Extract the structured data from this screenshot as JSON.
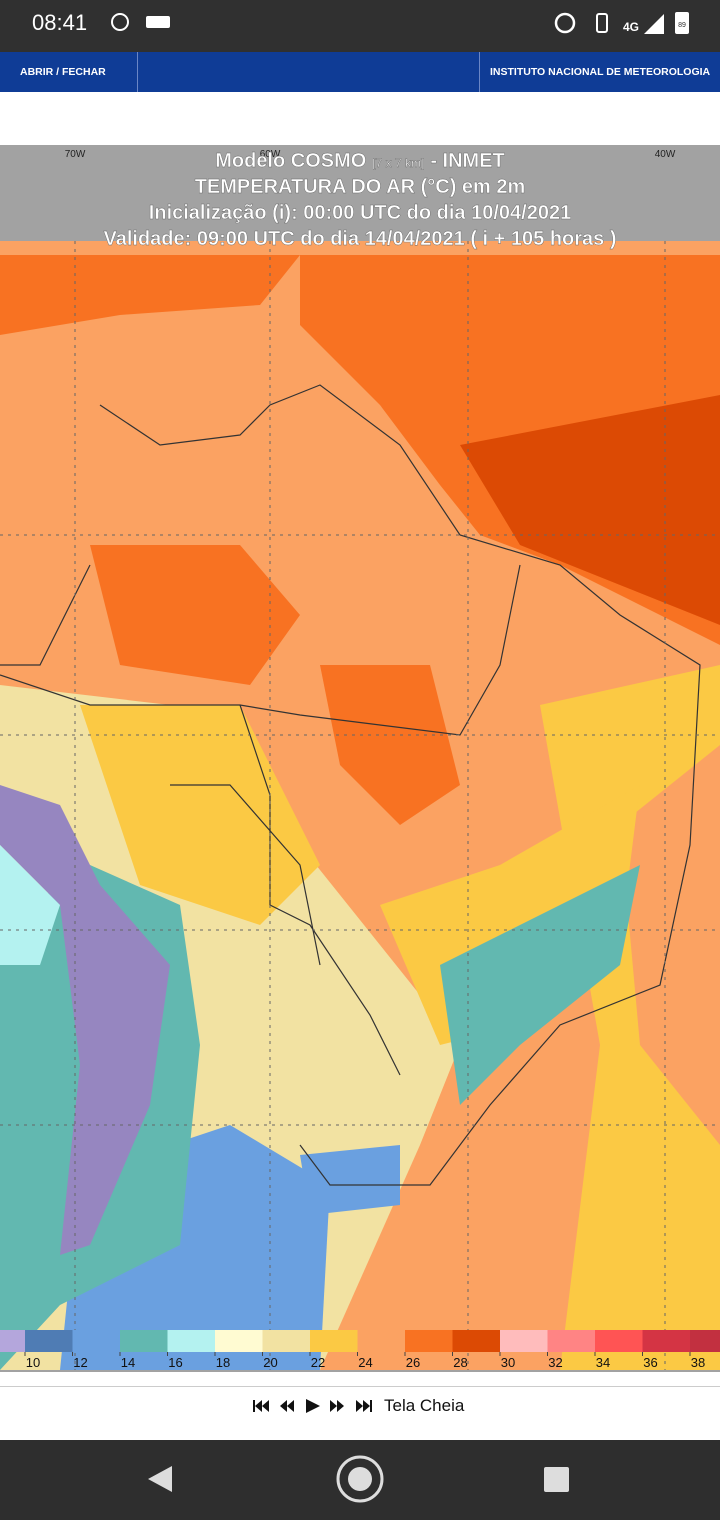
{
  "status_bar": {
    "time": "08:41",
    "network": "4G",
    "battery": "89"
  },
  "header": {
    "menu": "ABRIR / FECHAR",
    "title": "INSTITUTO NACIONAL DE METEOROLOGIA"
  },
  "map": {
    "title_model": "Modelo COSMO",
    "title_resolution": "[7 x 7 km]",
    "title_source": "- INMET",
    "variable": "TEMPERATURA DO AR (°C) em 2m",
    "initialization": "Inicialização (i): 00:00 UTC do dia 10/04/2021",
    "validity": "Validade: 09:00 UTC do dia 14/04/2021 ( i + 105 horas )",
    "longitudes": [
      "70W",
      "60W",
      "40W"
    ]
  },
  "colorbar": {
    "labels": [
      10,
      12,
      14,
      16,
      18,
      20,
      22,
      24,
      26,
      28,
      30,
      32,
      34,
      36,
      38
    ],
    "colors": [
      "#b4a6dc",
      "#4f7cb4",
      "#6aa0e0",
      "#62b8b0",
      "#b4f2f0",
      "#fffbd2",
      "#f2e2a2",
      "#fbc944",
      "#fba262",
      "#f87222",
      "#dc4a04",
      "#ffbcbc",
      "#ff8484",
      "#ff5454",
      "#d43444",
      "#c23040"
    ]
  },
  "controls": {
    "fullscreen": "Tela Cheia"
  }
}
